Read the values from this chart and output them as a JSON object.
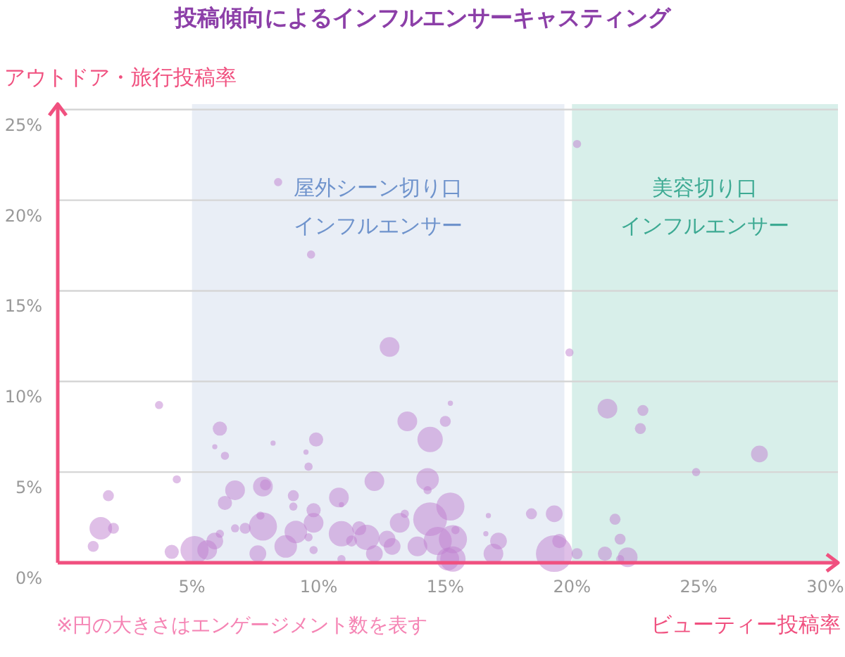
{
  "chart_data": {
    "type": "bubble",
    "title": "投稿傾向によるインフルエンサーキャスティング",
    "xlabel": "ビューティー投稿率",
    "ylabel": "アウトドア・旅行投稿率",
    "annotations": [
      "※円の大きさはエンゲージメント数を表す"
    ],
    "xlim": [
      -0.3,
      30.5
    ],
    "ylim": [
      0,
      25.3
    ],
    "xticks": [
      {
        "value": 5,
        "label": "5%"
      },
      {
        "value": 10,
        "label": "10%"
      },
      {
        "value": 15,
        "label": "15%"
      },
      {
        "value": 20,
        "label": "20%"
      },
      {
        "value": 25,
        "label": "25%"
      },
      {
        "value": 30,
        "label": "30%"
      }
    ],
    "yticks": [
      {
        "value": 0,
        "label": "0%"
      },
      {
        "value": 5,
        "label": "5%"
      },
      {
        "value": 10,
        "label": "10%"
      },
      {
        "value": 15,
        "label": "15%"
      },
      {
        "value": 20,
        "label": "20%"
      },
      {
        "value": 25,
        "label": "25%"
      }
    ],
    "grid": "y",
    "bands": [
      {
        "axis": "x",
        "from": 5,
        "to": 19.7,
        "label": "屋外シーン切り口インフルエンサー",
        "color": "#e9eef6"
      },
      {
        "axis": "x",
        "from": 20,
        "to": 30.5,
        "label": "美容切り口インフルエンサー",
        "color": "#d8efea"
      }
    ],
    "series": [
      {
        "color": "#c07fcf",
        "x": [
          8.4,
          9.7,
          12.8,
          20.2,
          19.9,
          21.4,
          22.8,
          22.7,
          24.9,
          27.4,
          3.7,
          6.1,
          5.9,
          6.3,
          8.2,
          9.9,
          9.5,
          9.6,
          13.5,
          14.4,
          15.0,
          15.2,
          4.4,
          1.7,
          6.7,
          7.8,
          7.9,
          9.0,
          9.0,
          6.3,
          10.8,
          10.9,
          12.2,
          14.3,
          14.3,
          9.8,
          1.4,
          1.9,
          1.1,
          4.2,
          5.1,
          5.6,
          5.9,
          6.1,
          6.7,
          7.1,
          7.8,
          7.7,
          7.6,
          8.7,
          9.1,
          9.8,
          9.6,
          9.8,
          10.9,
          11.3,
          11.6,
          11.9,
          12.2,
          12.7,
          12.9,
          13.2,
          13.4,
          13.9,
          14.4,
          14.7,
          15.1,
          10.9,
          15.2,
          15.4,
          15.3,
          15.3,
          16.7,
          16.6,
          17.1,
          16.9,
          18.4,
          19.3,
          19.3,
          19.5,
          20.2,
          21.7,
          21.9,
          21.3,
          22.2,
          21.9
        ],
        "values": [
          21.0,
          17.0,
          11.9,
          23.1,
          11.6,
          8.5,
          8.4,
          7.4,
          5.0,
          6.0,
          8.7,
          7.4,
          6.4,
          5.9,
          6.6,
          6.8,
          6.1,
          5.3,
          7.8,
          6.8,
          7.8,
          8.8,
          4.6,
          3.7,
          4.0,
          4.2,
          4.3,
          3.7,
          3.1,
          3.3,
          3.6,
          3.2,
          4.5,
          4.6,
          4.0,
          2.9,
          1.9,
          1.9,
          0.9,
          0.6,
          0.7,
          0.7,
          1.2,
          1.6,
          1.9,
          1.9,
          2.0,
          2.6,
          0.5,
          0.9,
          1.7,
          2.2,
          1.4,
          0.7,
          1.6,
          1.2,
          1.9,
          1.4,
          0.5,
          1.3,
          0.9,
          2.2,
          2.7,
          0.9,
          2.4,
          1.2,
          0.2,
          0.2,
          3.1,
          1.8,
          1.3,
          0.2,
          2.6,
          1.6,
          1.2,
          0.5,
          2.7,
          2.7,
          0.5,
          1.2,
          0.5,
          2.4,
          1.3,
          0.5,
          0.3,
          0.2
        ],
        "sizes": [
          0.05,
          0.05,
          0.29,
          0.05,
          0.05,
          0.29,
          0.09,
          0.09,
          0.05,
          0.21,
          0.05,
          0.15,
          0.02,
          0.05,
          0.02,
          0.15,
          0.02,
          0.05,
          0.29,
          0.48,
          0.09,
          0.02,
          0.05,
          0.09,
          0.29,
          0.29,
          0.09,
          0.09,
          0.05,
          0.15,
          0.29,
          0.02,
          0.29,
          0.38,
          0.05,
          0.15,
          0.38,
          0.09,
          0.09,
          0.15,
          0.59,
          0.29,
          0.21,
          0.05,
          0.05,
          0.09,
          0.59,
          0.05,
          0.21,
          0.38,
          0.38,
          0.29,
          0.05,
          0.05,
          0.48,
          0.09,
          0.15,
          0.48,
          0.21,
          0.21,
          0.21,
          0.29,
          0.05,
          0.29,
          0.85,
          0.59,
          0.38,
          0.05,
          0.59,
          0.05,
          0.59,
          0.48,
          0.02,
          0.02,
          0.21,
          0.29,
          0.09,
          0.21,
          1,
          0.15,
          0.09,
          0.09,
          0.09,
          0.15,
          0.29,
          0.05
        ]
      }
    ]
  }
}
